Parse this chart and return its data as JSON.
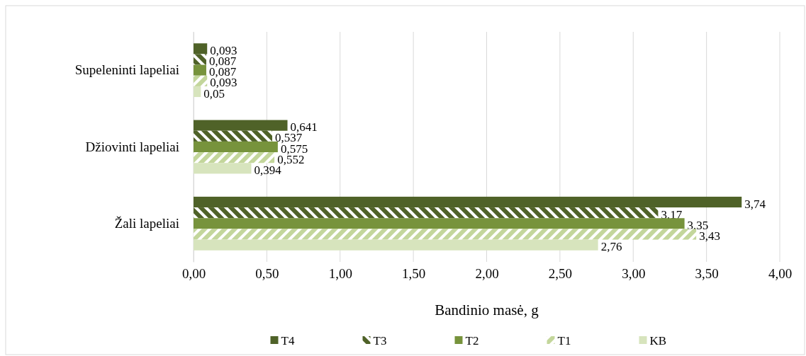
{
  "chart_data": {
    "type": "bar",
    "orientation": "horizontal",
    "xlabel": "Bandinio masė, g",
    "categories": [
      "Supeleninti lapeliai",
      "Džiovinti lapeliai",
      "Žali lapeliai"
    ],
    "series": [
      {
        "name": "T4",
        "color": "#4f6228",
        "values": [
          0.093,
          0.641,
          3.74
        ],
        "value_labels": [
          "0,093",
          "0,641",
          "3,74"
        ]
      },
      {
        "name": "T3",
        "color": "#4f6228",
        "values": [
          0.087,
          0.537,
          3.17
        ],
        "value_labels": [
          "0,087",
          "0,537",
          "3,17"
        ]
      },
      {
        "name": "T2",
        "color": "#77933c",
        "values": [
          0.087,
          0.575,
          3.35
        ],
        "value_labels": [
          "0,087",
          "0,575",
          "3,35"
        ]
      },
      {
        "name": "T1",
        "color": "#c3d69b",
        "values": [
          0.093,
          0.552,
          3.43
        ],
        "value_labels": [
          "0,093",
          "0,552",
          "3,43"
        ]
      },
      {
        "name": "KB",
        "color": "#d7e4bd",
        "values": [
          0.05,
          0.394,
          2.76
        ],
        "value_labels": [
          "0,05",
          "0,394",
          "2,76"
        ]
      }
    ],
    "xlim": [
      0,
      4
    ],
    "xticks": [
      {
        "value": 0,
        "label": "0,00"
      },
      {
        "value": 0.5,
        "label": "0,50"
      },
      {
        "value": 1,
        "label": "1,00"
      },
      {
        "value": 1.5,
        "label": "1,50"
      },
      {
        "value": 2,
        "label": "2,00"
      },
      {
        "value": 2.5,
        "label": "2,50"
      },
      {
        "value": 3,
        "label": "3,00"
      },
      {
        "value": 3.5,
        "label": "3,50"
      },
      {
        "value": 4,
        "label": "4,00"
      }
    ],
    "grid": "x",
    "legend": "bottom"
  }
}
